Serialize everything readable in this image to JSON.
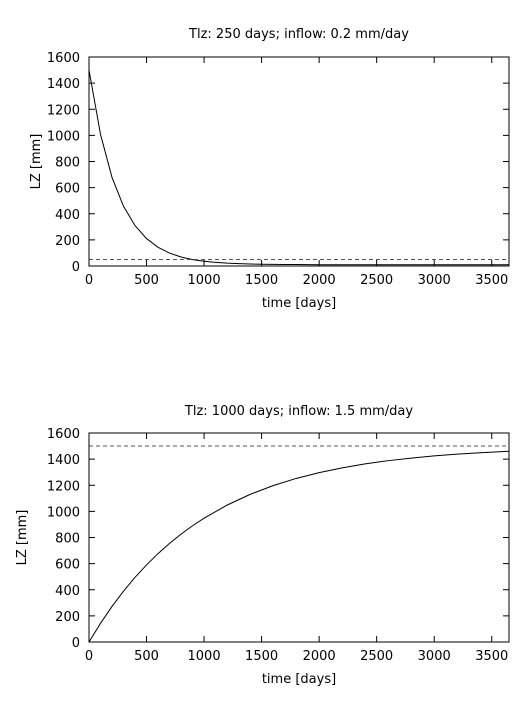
{
  "chart_data": [
    {
      "type": "line",
      "title": "Tlz: 250 days; inflow: 0.2 mm/day",
      "xlabel": "time [days]",
      "ylabel": "LZ [mm]",
      "xlim": [
        0,
        3650
      ],
      "ylim": [
        0,
        1600
      ],
      "x_ticks": [
        0,
        500,
        1000,
        1500,
        2000,
        2500,
        3000,
        3500
      ],
      "y_ticks": [
        0,
        200,
        400,
        600,
        800,
        1000,
        1200,
        1400,
        1600
      ],
      "series": [
        {
          "style": "solid",
          "x": [
            0,
            100,
            200,
            300,
            400,
            500,
            600,
            700,
            800,
            900,
            1000,
            1100,
            1200,
            1300,
            1400,
            1500,
            1600,
            1700,
            1800,
            2000,
            2500,
            3000,
            3650
          ],
          "y": [
            1500,
            1008,
            678,
            457,
            309,
            210,
            143,
            99,
            69,
            49,
            36,
            28,
            22,
            18,
            15,
            13,
            12,
            11,
            11,
            10,
            10,
            10,
            10
          ]
        },
        {
          "style": "dashed",
          "x": [
            0,
            3650
          ],
          "y": [
            50,
            50
          ]
        }
      ]
    },
    {
      "type": "line",
      "title": "Tlz: 1000 days; inflow: 1.5 mm/day",
      "xlabel": "time [days]",
      "ylabel": "LZ [mm]",
      "xlim": [
        0,
        3650
      ],
      "ylim": [
        0,
        1600
      ],
      "x_ticks": [
        0,
        500,
        1000,
        1500,
        2000,
        2500,
        3000,
        3500
      ],
      "y_ticks": [
        0,
        200,
        400,
        600,
        800,
        1000,
        1200,
        1400,
        1600
      ],
      "series": [
        {
          "style": "solid",
          "x": [
            0,
            100,
            200,
            300,
            400,
            500,
            600,
            700,
            800,
            900,
            1000,
            1200,
            1400,
            1600,
            1800,
            2000,
            2200,
            2400,
            2600,
            2800,
            3000,
            3200,
            3400,
            3650
          ],
          "y": [
            0,
            143,
            272,
            389,
            495,
            590,
            677,
            755,
            826,
            890,
            948,
            1048,
            1130,
            1197,
            1252,
            1297,
            1333,
            1364,
            1388,
            1408,
            1425,
            1438,
            1449,
            1460
          ]
        },
        {
          "style": "dashed",
          "x": [
            0,
            3650
          ],
          "y": [
            1500,
            1500
          ]
        }
      ]
    }
  ]
}
